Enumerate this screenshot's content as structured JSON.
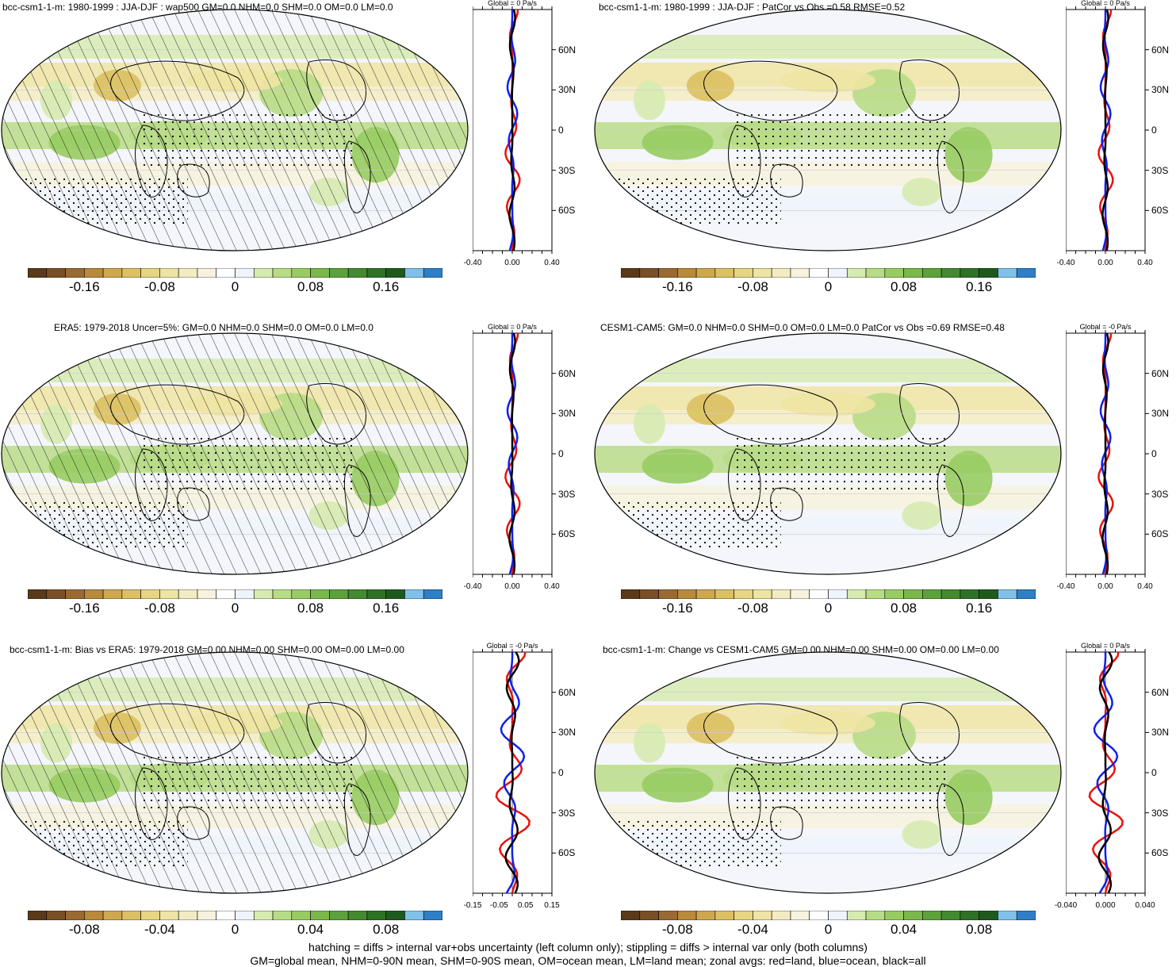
{
  "colorbar_colors": [
    "#5a3a1a",
    "#7a4f25",
    "#9a6a32",
    "#b88a3a",
    "#cfa84d",
    "#dcc062",
    "#e6d583",
    "#eee4a3",
    "#f3ecc2",
    "#f7f2dd",
    "#ffffff",
    "#eef4fb",
    "#d6ebb0",
    "#b8dc86",
    "#98cc62",
    "#7ab84a",
    "#5ca23b",
    "#448a30",
    "#2e7225",
    "#1f5a1d",
    "#7fc1ea",
    "#2f7fc8"
  ],
  "panels": [
    {
      "title": "bcc-csm1-1-m: 1980-1999 : JJA-DJF : wap500 GM=0.0 NHM=0.0 SHM=0.0 OM=0.0 LM=0.0",
      "zonal_title": "Global = 0 Pa/s",
      "x_ticks": [
        "-0.40",
        "0.00",
        "0.40"
      ],
      "lat_labels": [
        "60N",
        "30N",
        "0",
        "30S",
        "60S"
      ],
      "colorbar_labels": [
        "-0.16",
        "-0.08",
        "0",
        "0.08",
        "0.16"
      ],
      "hatching": true
    },
    {
      "title": "bcc-csm1-1-m: 1980-1999 : JJA-DJF : PatCor vs Obs =0.58 RMSE=0.52",
      "zonal_title": "Global = 0 Pa/s",
      "x_ticks": [
        "-0.40",
        "0.00",
        "0.40"
      ],
      "lat_labels": [
        "60N",
        "30N",
        "0",
        "30S",
        "60S"
      ],
      "colorbar_labels": [
        "-0.16",
        "-0.08",
        "0",
        "0.08",
        "0.16"
      ],
      "hatching": false
    },
    {
      "title": "ERA5: 1979-2018 Uncer=5%: GM=0.0 NHM=0.0 SHM=0.0 OM=0.0 LM=0.0",
      "zonal_title": "Global = 0 Pa/s",
      "x_ticks": [
        "-0.40",
        "0.00",
        "0.40"
      ],
      "lat_labels": [
        "60N",
        "30N",
        "0",
        "30S",
        "60S"
      ],
      "colorbar_labels": [
        "-0.16",
        "-0.08",
        "0",
        "0.08",
        "0.16"
      ],
      "hatching": true
    },
    {
      "title": "CESM1-CAM5: GM=0.0 NHM=0.0 SHM=0.0 OM=0.0 LM=0.0 PatCor vs Obs =0.69 RMSE=0.48",
      "zonal_title": "Global = -0 Pa/s",
      "x_ticks": [
        "-0.40",
        "0.00",
        "0.40"
      ],
      "lat_labels": [
        "60N",
        "30N",
        "0",
        "30S",
        "60S"
      ],
      "colorbar_labels": [
        "-0.16",
        "-0.08",
        "0",
        "0.08",
        "0.16"
      ],
      "hatching": false
    },
    {
      "title": "bcc-csm1-1-m: Bias vs ERA5: 1979-2018 GM=0.00 NHM=0.00 SHM=0.00 OM=0.00 LM=0.00",
      "zonal_title": "Global = -0 Pa/s",
      "x_ticks": [
        "-0.15",
        "-0.05",
        "0.05",
        "0.15"
      ],
      "lat_labels": [
        "60N",
        "30N",
        "0",
        "30S",
        "60S"
      ],
      "colorbar_labels": [
        "-0.08",
        "-0.04",
        "0",
        "0.04",
        "0.08"
      ],
      "hatching": true
    },
    {
      "title": "bcc-csm1-1-m: Change vs CESM1-CAM5 GM=0.00 NHM=0.00 SHM=0.00 OM=0.00 LM=0.00",
      "zonal_title": "Global = 0 Pa/s",
      "x_ticks": [
        "-0.040",
        "0.000",
        "0.040"
      ],
      "lat_labels": [
        "60N",
        "30N",
        "0",
        "30S",
        "60S"
      ],
      "colorbar_labels": [
        "-0.08",
        "-0.04",
        "0",
        "0.04",
        "0.08"
      ],
      "hatching": false
    }
  ],
  "footer": {
    "line1": "hatching = diffs > internal var+obs uncertainty (left column only); stippling = diffs > internal var only (both columns)",
    "line2": "GM=global mean, NHM=0-90N mean, SHM=0-90S mean, OM=ocean mean, LM=land mean; zonal avgs: red=land, blue=ocean, black=all"
  }
}
